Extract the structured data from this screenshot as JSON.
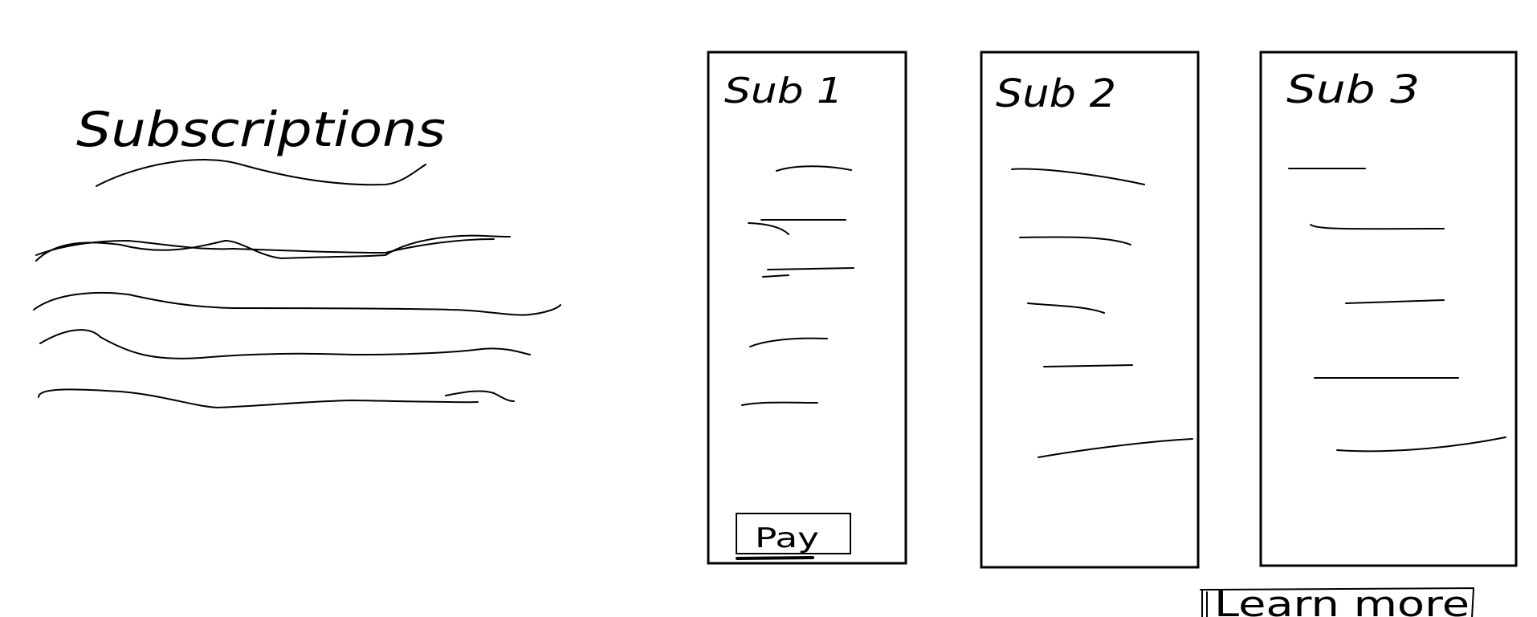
{
  "title": "Subscriptions",
  "description_placeholder_lines": 4,
  "subscriptions": [
    {
      "name": "Sub 1",
      "feature_lines": 5,
      "action_label": "Pay"
    },
    {
      "name": "Sub 2",
      "feature_lines": 5
    },
    {
      "name": "Sub 3",
      "feature_lines": 5
    }
  ],
  "learn_more_label": "Learn more"
}
